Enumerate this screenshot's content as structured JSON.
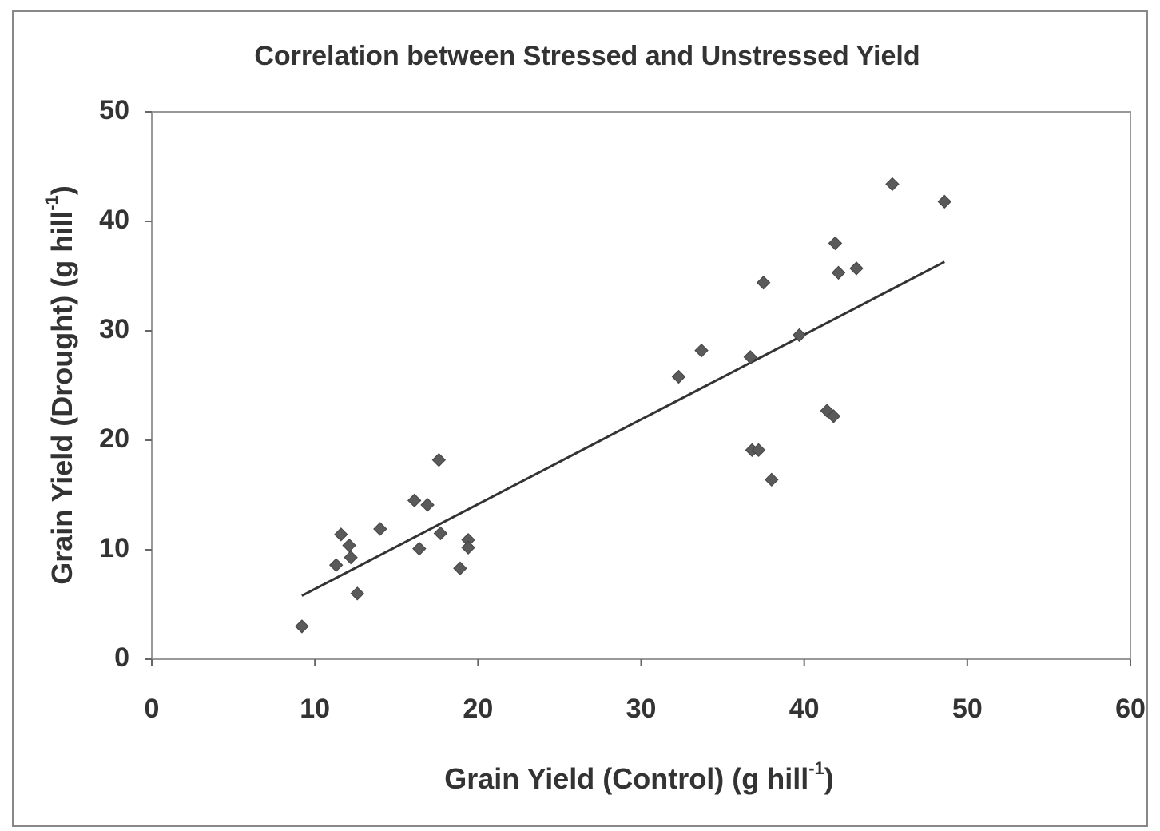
{
  "chart_data": {
    "type": "scatter",
    "title": "Correlation between Stressed and Unstressed Yield",
    "x_label": {
      "text": "Grain Yield (Control) (g hill",
      "superscript": "-1",
      "suffix": ")"
    },
    "y_label": {
      "text": "Grain Yield (Drought) (g hill",
      "superscript": "-1",
      "suffix": ")"
    },
    "xlim": [
      0,
      60
    ],
    "xticks": [
      0,
      10,
      20,
      30,
      40,
      50,
      60
    ],
    "ylim": [
      0,
      50
    ],
    "yticks": [
      0,
      10,
      20,
      30,
      40,
      50
    ],
    "color": "#5a5a5a",
    "x": [
      9.2,
      11.3,
      11.6,
      12.1,
      12.2,
      12.6,
      14.0,
      16.1,
      16.4,
      16.9,
      17.6,
      17.7,
      18.9,
      19.4,
      19.4,
      32.3,
      33.7,
      36.7,
      36.8,
      37.2,
      37.5,
      38.0,
      39.7,
      41.4,
      41.8,
      41.9,
      42.1,
      43.2,
      45.4,
      48.6
    ],
    "values": [
      3.0,
      8.6,
      11.4,
      10.4,
      9.3,
      6.0,
      11.9,
      14.5,
      10.1,
      14.1,
      18.2,
      11.5,
      8.3,
      10.9,
      10.2,
      25.8,
      28.2,
      27.6,
      19.1,
      19.1,
      34.4,
      16.4,
      29.6,
      22.7,
      22.2,
      38.0,
      35.3,
      35.7,
      43.4,
      41.8
    ],
    "trendline": {
      "color": "#333333",
      "x": [
        9.2,
        48.6
      ],
      "values": [
        5.8,
        36.3
      ]
    }
  }
}
